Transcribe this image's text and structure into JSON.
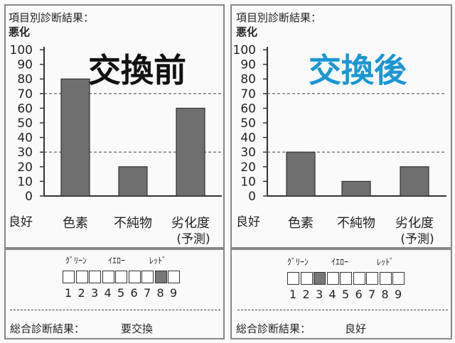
{
  "colors": {
    "bar": "#6f6f6f",
    "after_title": "#1a96d4",
    "before_title": "#111111"
  },
  "panels": [
    {
      "key": "before",
      "big_title": "交換前",
      "item_label": "項目別診断結果：",
      "y_top_label": "悪化",
      "good_label": "良好",
      "meter": {
        "labels": [
          "ｸﾞﾘｰﾝ",
          "ｲｴﾛｰ",
          "ﾚｯﾄﾞ"
        ],
        "numbers": [
          "1",
          "2",
          "3",
          "4",
          "5",
          "6",
          "7",
          "8",
          "9"
        ],
        "active": 8
      },
      "result_label": "総合診断結果：",
      "result_value": "要交換"
    },
    {
      "key": "after",
      "big_title": "交換後",
      "item_label": "項目別診断結果：",
      "y_top_label": "悪化",
      "good_label": "良好",
      "meter": {
        "labels": [
          "ｸﾞﾘｰﾝ",
          "ｲｴﾛｰ",
          "ﾚｯﾄﾞ"
        ],
        "numbers": [
          "1",
          "2",
          "3",
          "4",
          "5",
          "6",
          "7",
          "8",
          "9"
        ],
        "active": 3
      },
      "result_label": "総合診断結果：",
      "result_value": "良好"
    }
  ],
  "chart_data": [
    {
      "type": "bar",
      "title": "交換前",
      "categories": [
        "色素",
        "不純物",
        "劣化度"
      ],
      "category_sub": [
        "",
        "",
        "(予測)"
      ],
      "values": [
        80,
        20,
        60
      ],
      "ylim": [
        0,
        100
      ],
      "yticks": [
        0,
        10,
        20,
        30,
        40,
        50,
        60,
        70,
        80,
        90,
        100
      ],
      "reference_lines": [
        30,
        70
      ]
    },
    {
      "type": "bar",
      "title": "交換後",
      "categories": [
        "色素",
        "不純物",
        "劣化度"
      ],
      "category_sub": [
        "",
        "",
        "(予測)"
      ],
      "values": [
        30,
        10,
        20
      ],
      "ylim": [
        0,
        100
      ],
      "yticks": [
        0,
        10,
        20,
        30,
        40,
        50,
        60,
        70,
        80,
        90,
        100
      ],
      "reference_lines": [
        30,
        70
      ]
    }
  ]
}
